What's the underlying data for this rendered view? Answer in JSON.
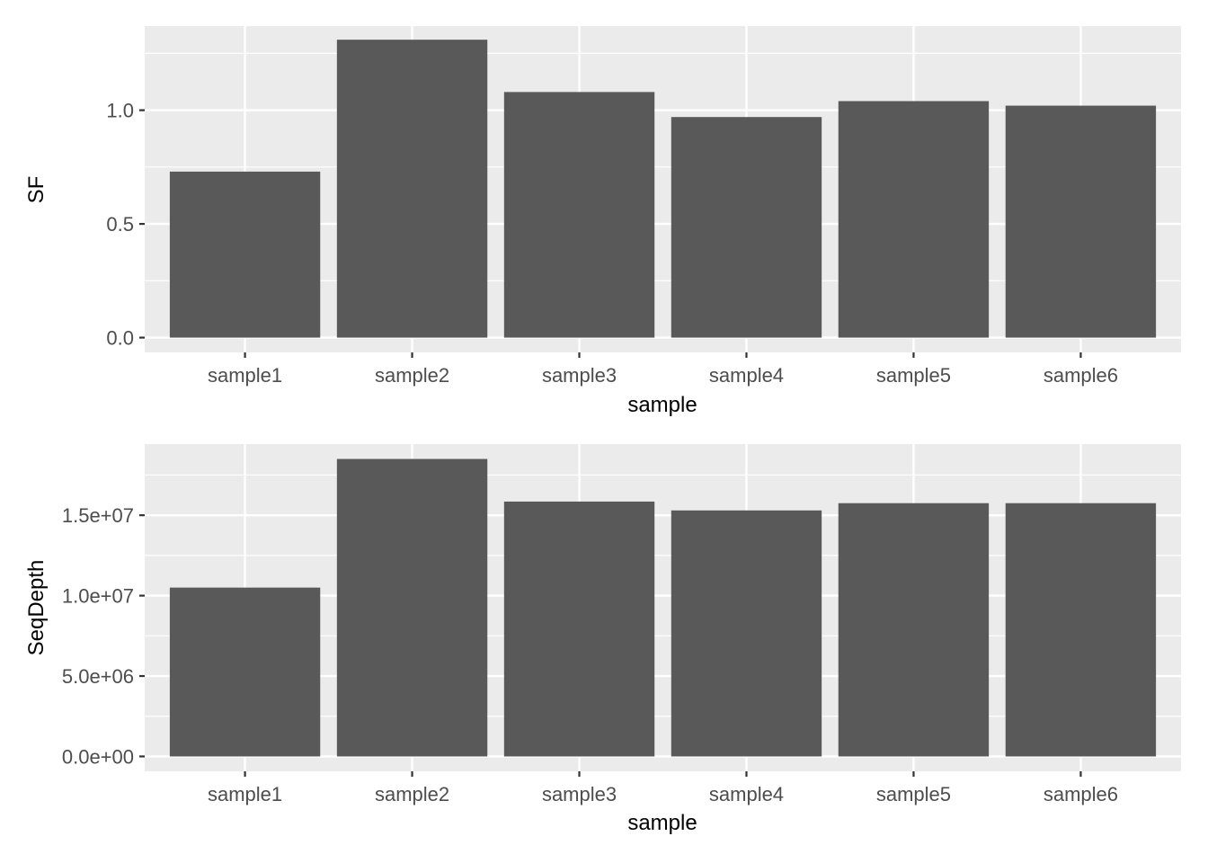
{
  "chart_data": [
    {
      "type": "bar",
      "title": "",
      "xlabel": "sample",
      "ylabel": "SF",
      "categories": [
        "sample1",
        "sample2",
        "sample3",
        "sample4",
        "sample5",
        "sample6"
      ],
      "values": [
        0.73,
        1.31,
        1.08,
        0.97,
        1.04,
        1.02
      ],
      "ylim": [
        -0.065,
        1.37
      ],
      "yticks": [
        0.0,
        0.5,
        1.0
      ],
      "ytick_labels": [
        "0.0",
        "0.5",
        "1.0"
      ],
      "grid": true,
      "panel_bg": "#ebebeb",
      "bar_color": "#595959"
    },
    {
      "type": "bar",
      "title": "",
      "xlabel": "sample",
      "ylabel": "SeqDepth",
      "categories": [
        "sample1",
        "sample2",
        "sample3",
        "sample4",
        "sample5",
        "sample6"
      ],
      "values": [
        10500000,
        18500000,
        15850000,
        15300000,
        15750000,
        15750000
      ],
      "ylim": [
        -925000,
        19425000
      ],
      "yticks": [
        0,
        5000000,
        10000000,
        15000000
      ],
      "ytick_labels": [
        "0.0e+00",
        "5.0e+06",
        "1.0e+07",
        "1.5e+07"
      ],
      "grid": true,
      "panel_bg": "#ebebeb",
      "bar_color": "#595959"
    }
  ]
}
